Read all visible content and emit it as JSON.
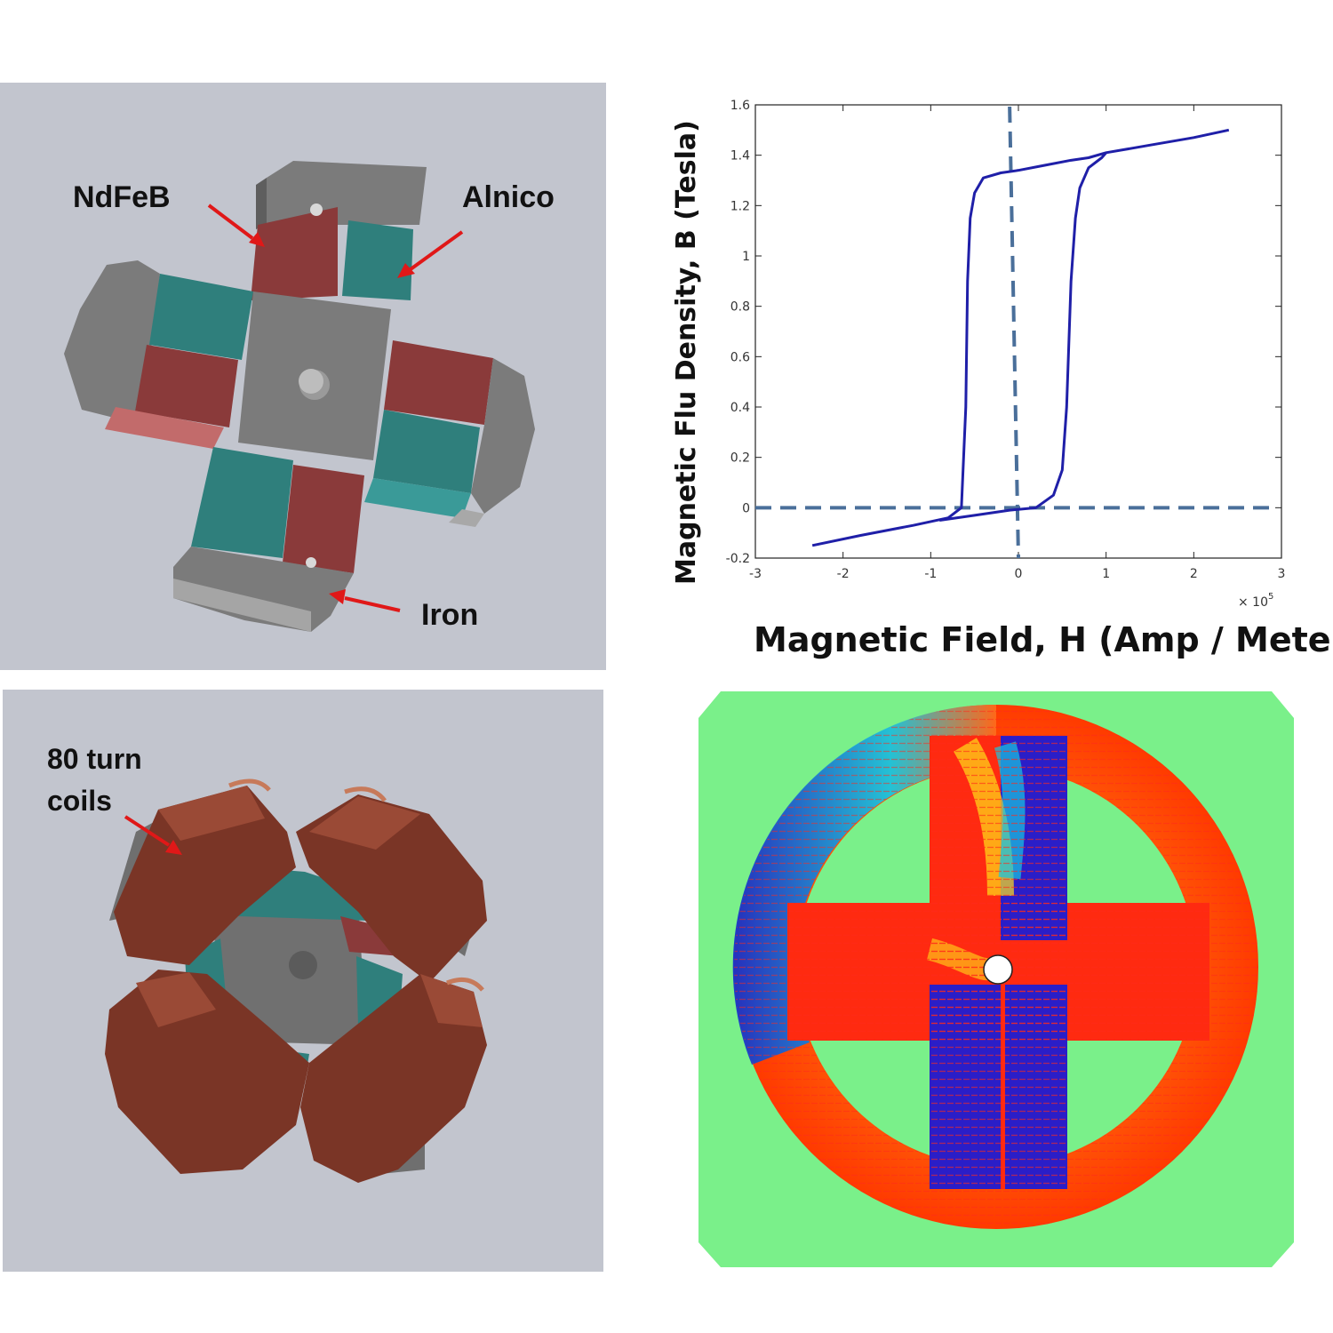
{
  "cad_top": {
    "labels": {
      "ndfeb": "NdFeB",
      "alnico": "Alnico",
      "iron": "Iron"
    },
    "colors": {
      "ndfeb": "#8a3a3a",
      "alnico": "#2f7f7c",
      "iron": "#7b7b7b",
      "background": "#c2c5ce",
      "arrow": "#e01818"
    }
  },
  "cad_bottom": {
    "labels": {
      "coils_line1": "80 turn",
      "coils_line2": "coils"
    },
    "colors": {
      "coil": "#7a3526"
    }
  },
  "chart_data": {
    "type": "line",
    "xlabel": "Magnetic Field, H (Amp / Meter)",
    "ylabel": "Magnetic Flu Density, B (Tesla)",
    "x_multiplier_label": "× 10",
    "x_multiplier_exponent": "5",
    "xlim": [
      -3,
      3
    ],
    "ylim": [
      -0.2,
      1.6
    ],
    "x_ticks": [
      "-3",
      "-2",
      "-1",
      "0",
      "1",
      "2",
      "3"
    ],
    "y_ticks": [
      "-0.2",
      "0",
      "0.2",
      "0.4",
      "0.6",
      "0.8",
      "1",
      "1.2",
      "1.4",
      "1.6"
    ],
    "grid": false,
    "line_color": "#1f1fa8",
    "dashed_axes_color": "#4a6f9a",
    "series": [
      {
        "x": [
          -2.35,
          -1.8,
          -1.2,
          -0.8,
          -0.65,
          -0.6,
          -0.58,
          -0.55,
          -0.5,
          -0.4,
          -0.2,
          0.0,
          0.3,
          0.6,
          0.8,
          1.0,
          1.5,
          2.0,
          2.4
        ],
        "y": [
          -0.15,
          -0.11,
          -0.07,
          -0.04,
          0.0,
          0.4,
          0.9,
          1.15,
          1.25,
          1.31,
          1.33,
          1.34,
          1.36,
          1.38,
          1.39,
          1.41,
          1.44,
          1.47,
          1.5
        ]
      },
      {
        "x": [
          -0.9,
          -0.5,
          -0.1,
          0.2,
          0.4,
          0.5,
          0.55,
          0.6,
          0.65,
          0.7,
          0.8,
          0.95,
          1.0
        ],
        "y": [
          -0.05,
          -0.03,
          -0.01,
          0.0,
          0.05,
          0.15,
          0.4,
          0.9,
          1.15,
          1.27,
          1.35,
          1.39,
          1.41
        ]
      }
    ]
  },
  "simulation": {
    "colors": {
      "background": "#7af08a",
      "high": "#ff1a00",
      "mid": "#ffd21a",
      "low": "#1a1acc",
      "cyan": "#1ad0e6",
      "arrows": "#ff2a1a"
    }
  }
}
